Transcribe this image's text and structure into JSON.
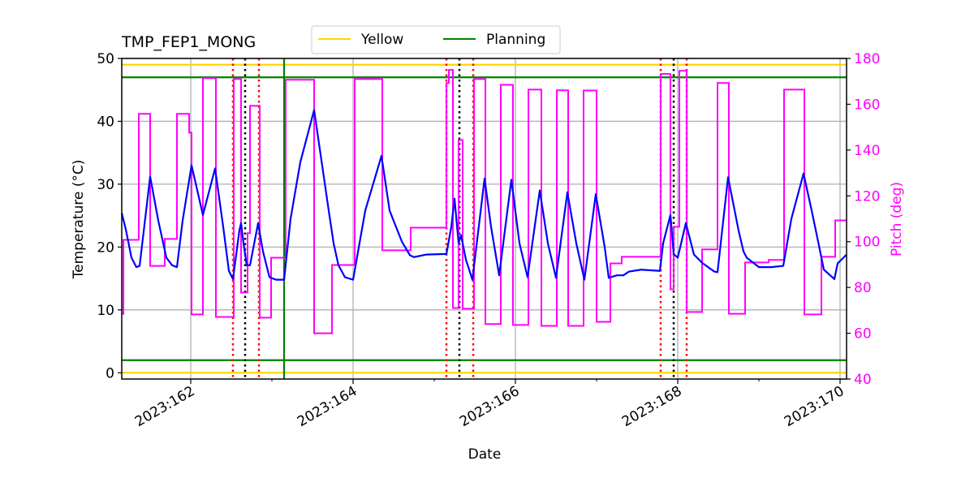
{
  "chart_data": {
    "type": "line",
    "title": "TMP_FEP1_MONG",
    "xlabel": "Date",
    "ylabel": "Temperature ($^\\circ$C)",
    "ylabel_display": "Temperature (°C)",
    "y2label": "Pitch (deg)",
    "xlim": [
      161.15,
      170.08
    ],
    "ylim": [
      -1,
      50
    ],
    "y2lim": [
      40,
      180
    ],
    "grid": true,
    "legend_placement": "top-center",
    "x_ticks": [
      162,
      164,
      166,
      168,
      170
    ],
    "x_minor_ticks": [
      163,
      165,
      167,
      169
    ],
    "x_tick_labels": [
      "2023:162",
      "2023:164",
      "2023:166",
      "2023:168",
      "2023:170"
    ],
    "y_ticks": [
      0,
      10,
      20,
      30,
      40,
      50
    ],
    "y_tick_labels": [
      "0",
      "10",
      "20",
      "30",
      "40",
      "50"
    ],
    "y2_ticks": [
      40,
      60,
      80,
      100,
      120,
      140,
      160,
      180
    ],
    "y2_tick_labels": [
      "40",
      "60",
      "80",
      "100",
      "120",
      "140",
      "160",
      "180"
    ],
    "legend": [
      {
        "name": "Yellow",
        "color": "#ffd700"
      },
      {
        "name": "Planning",
        "color": "#008000"
      }
    ],
    "limit_lines": [
      {
        "name": "Yellow",
        "values": [
          49,
          0
        ],
        "color": "#ffd700"
      },
      {
        "name": "Planning",
        "values": [
          47,
          2
        ],
        "color": "#008000"
      }
    ],
    "vertical_lines": {
      "green_solid": [
        163.15
      ],
      "red_dotted": [
        162.52,
        162.84,
        165.15,
        165.48,
        167.79,
        168.11
      ],
      "black_dotted": [
        162.67,
        165.31,
        167.95
      ]
    },
    "colors": {
      "temperature": "#0000ff",
      "pitch": "#ff00ff",
      "red": "#ff0000",
      "black": "#000000",
      "grid": "#b0b0b0"
    },
    "temperature": {
      "x": [
        161.15,
        161.2,
        161.27,
        161.33,
        161.37,
        161.5,
        161.6,
        161.7,
        161.77,
        161.83,
        161.9,
        162.01,
        162.15,
        162.3,
        162.4,
        162.47,
        162.52,
        162.6,
        162.62,
        162.65,
        162.69,
        162.73,
        162.83,
        162.89,
        162.97,
        163.05,
        163.15,
        163.23,
        163.35,
        163.52,
        163.7,
        163.76,
        163.82,
        163.9,
        164.0,
        164.15,
        164.35,
        164.45,
        164.6,
        164.7,
        164.75,
        164.9,
        165.15,
        165.21,
        165.25,
        165.3,
        165.33,
        165.39,
        165.47,
        165.62,
        165.7,
        165.8,
        165.95,
        166.05,
        166.15,
        166.3,
        166.4,
        166.5,
        166.64,
        166.75,
        166.85,
        166.99,
        167.1,
        167.15,
        167.25,
        167.33,
        167.4,
        167.55,
        167.78,
        167.82,
        167.91,
        167.95,
        168.0,
        168.1,
        168.2,
        168.3,
        168.45,
        168.49,
        168.62,
        168.75,
        168.81,
        168.85,
        169.0,
        169.15,
        169.3,
        169.4,
        169.55,
        169.65,
        169.75,
        169.8,
        169.93,
        169.97,
        170.08
      ],
      "y": [
        25.4,
        22.8,
        18.3,
        16.8,
        17.0,
        31.2,
        24.2,
        18.3,
        17.1,
        16.8,
        24.2,
        33.0,
        25.1,
        32.5,
        23.2,
        16.2,
        14.9,
        22.7,
        23.8,
        20.6,
        17.1,
        17.1,
        23.8,
        19.3,
        15.2,
        14.8,
        14.8,
        24.5,
        33.5,
        41.8,
        25.8,
        20.6,
        17.1,
        15.2,
        14.8,
        25.8,
        34.5,
        25.8,
        20.9,
        18.7,
        18.4,
        18.8,
        18.9,
        23.2,
        27.7,
        20.6,
        21.9,
        18.0,
        14.8,
        30.9,
        23.2,
        15.5,
        30.7,
        20.6,
        15.2,
        29.0,
        20.6,
        15.1,
        28.7,
        20.6,
        14.8,
        28.4,
        20.0,
        15.1,
        15.5,
        15.5,
        16.1,
        16.4,
        16.2,
        20.6,
        25.1,
        18.9,
        18.3,
        23.8,
        18.8,
        17.5,
        16.1,
        16.0,
        31.1,
        22.6,
        19.3,
        18.3,
        16.8,
        16.8,
        17.0,
        24.5,
        31.7,
        25.8,
        19.6,
        16.4,
        14.9,
        17.4,
        18.8
      ]
    },
    "pitch": {
      "x": [
        161.15,
        161.17,
        161.36,
        161.5,
        161.68,
        161.83,
        161.98,
        162.01,
        162.15,
        162.31,
        162.53,
        162.62,
        162.7,
        162.73,
        162.85,
        162.99,
        163.17,
        163.52,
        163.74,
        164.02,
        164.36,
        164.71,
        165.15,
        165.18,
        165.23,
        165.3,
        165.35,
        165.49,
        165.63,
        165.82,
        165.97,
        166.16,
        166.32,
        166.51,
        166.65,
        166.84,
        167.0,
        167.17,
        167.31,
        167.79,
        167.91,
        167.95,
        168.02,
        168.11,
        168.3,
        168.49,
        168.63,
        168.83,
        169.12,
        169.31,
        169.56,
        169.77,
        169.94,
        170.08
      ],
      "y": [
        68.5,
        100.8,
        155.8,
        89.4,
        101.2,
        155.8,
        147.6,
        68.2,
        171.4,
        67.1,
        171.0,
        77.8,
        103.7,
        159.3,
        66.8,
        93.0,
        170.7,
        60.0,
        89.8,
        171.0,
        96.2,
        106.1,
        169.3,
        175.0,
        71.0,
        144.4,
        70.7,
        171.0,
        64.0,
        168.5,
        63.6,
        166.4,
        63.2,
        166.1,
        63.2,
        166.0,
        65.0,
        90.5,
        93.4,
        173.2,
        79.2,
        106.5,
        174.6,
        69.3,
        96.6,
        169.3,
        68.5,
        90.9,
        92.0,
        166.4,
        68.2,
        93.4,
        109.3,
        109.3
      ]
    }
  }
}
